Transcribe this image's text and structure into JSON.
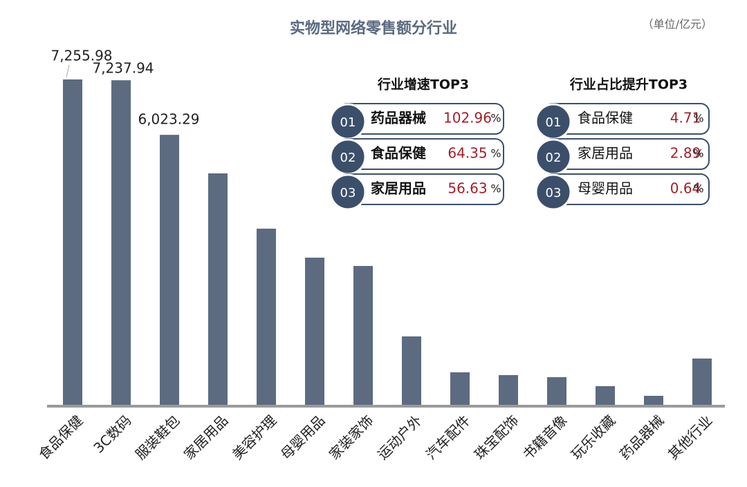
{
  "chart_data": {
    "type": "bar",
    "title": "实物型网络零售额分行业",
    "unit": "（单位/亿元）",
    "categories": [
      "食品保健",
      "3C数码",
      "服装鞋包",
      "家居用品",
      "美容护理",
      "母婴用品",
      "家装家饰",
      "运动户外",
      "汽车配件",
      "珠宝配饰",
      "书籍音像",
      "玩乐收藏",
      "药品器械",
      "其他行业"
    ],
    "values": [
      7255.98,
      7237.94,
      6023.29,
      5165,
      3935,
      3290,
      3105,
      1537,
      738,
      676,
      630,
      430,
      215,
      1045
    ],
    "value_labels": [
      "7,255.98",
      "7,237.94",
      "6,023.29",
      null,
      null,
      null,
      null,
      null,
      null,
      null,
      null,
      null,
      null,
      null
    ],
    "color": "#5c6b80",
    "panels": [
      {
        "title": "行业增速TOP3",
        "items": [
          {
            "rank": "01",
            "name": "药品器械",
            "value": 102.96,
            "unit": "%"
          },
          {
            "rank": "02",
            "name": "食品保健",
            "value": 64.35,
            "unit": "%"
          },
          {
            "rank": "03",
            "name": "家居用品",
            "value": 56.63,
            "unit": "%"
          }
        ]
      },
      {
        "title": "行业占比提升TOP3",
        "items": [
          {
            "rank": "01",
            "name": "食品保健",
            "value": 4.71,
            "unit": "%"
          },
          {
            "rank": "02",
            "name": "家居用品",
            "value": 2.89,
            "unit": "%"
          },
          {
            "rank": "03",
            "name": "母婴用品",
            "value": 0.64,
            "unit": "%"
          }
        ]
      }
    ]
  }
}
